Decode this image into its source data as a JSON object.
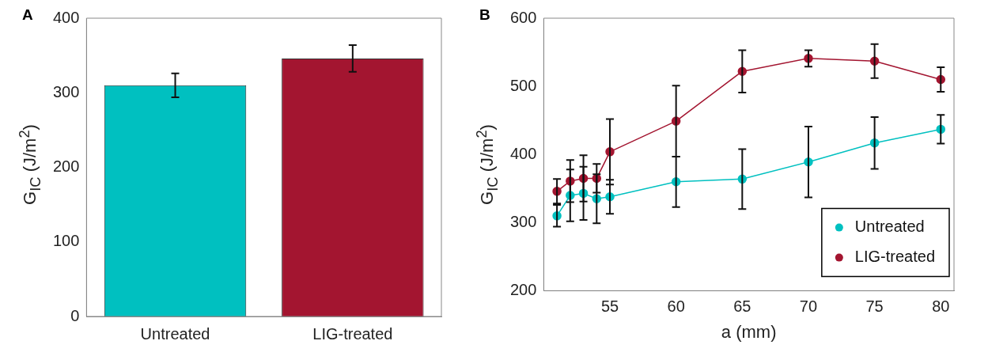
{
  "chart_data": [
    {
      "type": "bar",
      "title": "A",
      "ylabel": "G$_{IC}$ (J/m$^{2}$)",
      "categories": [
        "Untreated",
        "LIG-treated"
      ],
      "values": [
        310,
        346
      ],
      "errors": [
        16,
        18
      ],
      "colors": [
        "#00c0c0",
        "#a31530"
      ],
      "ylim": [
        0,
        400
      ],
      "yticks": [
        0,
        100,
        200,
        300,
        400
      ],
      "grid": false,
      "legend": false
    },
    {
      "type": "line",
      "title": "B",
      "xlabel": "a (mm)",
      "ylabel": "G$_{IC}$ (J/m$^{2}$)",
      "x": [
        51,
        52,
        53,
        54,
        55,
        60,
        65,
        70,
        75,
        80
      ],
      "series": [
        {
          "name": "Untreated",
          "color": "#00c0c0",
          "values": [
            310,
            340,
            343,
            335,
            338,
            360,
            364,
            389,
            417,
            437
          ],
          "errors": [
            16,
            38,
            39,
            36,
            25,
            37,
            44,
            52,
            38,
            21
          ]
        },
        {
          "name": "LIG-treated",
          "color": "#a31530",
          "values": [
            346,
            361,
            365,
            365,
            404,
            449,
            522,
            541,
            537,
            510
          ],
          "errors": [
            18,
            31,
            34,
            21,
            48,
            52,
            31,
            12,
            25,
            18
          ]
        }
      ],
      "xlim": [
        50,
        81
      ],
      "xticks": [
        55,
        60,
        65,
        70,
        75,
        80
      ],
      "ylim": [
        200,
        600
      ],
      "yticks": [
        200,
        300,
        400,
        500,
        600
      ],
      "grid": false,
      "legend": "bottom right",
      "marker": "circle",
      "line_style": "solid"
    }
  ]
}
